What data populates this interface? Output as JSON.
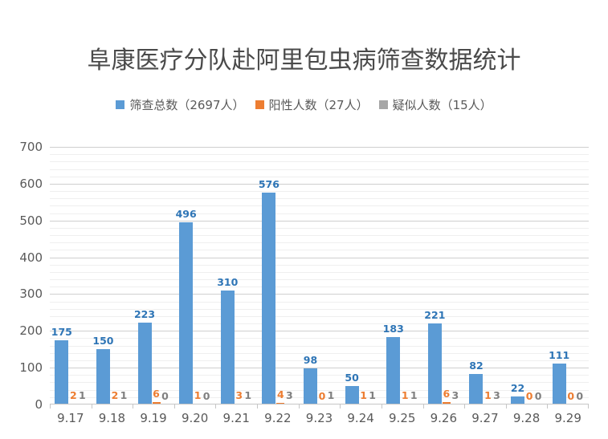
{
  "title": "阜康医疗分队赴阿里包虫病筛查数据统计",
  "legend": {
    "position": "top",
    "items": [
      {
        "label": "筛查总数（2697人）",
        "color": "#5B9BD5"
      },
      {
        "label": "阳性人数（27人）",
        "color": "#ED7D31"
      },
      {
        "label": "疑似人数（15人）",
        "color": "#A6A6A6"
      }
    ]
  },
  "chart_data": {
    "type": "bar",
    "title": "阜康医疗分队赴阿里包虫病筛查数据统计",
    "categories": [
      "9.17",
      "9.18",
      "9.19",
      "9.20",
      "9.21",
      "9.22",
      "9.23",
      "9.24",
      "9.25",
      "9.26",
      "9.27",
      "9.28",
      "9.29"
    ],
    "series": [
      {
        "name": "筛查总数（2697人）",
        "color": "#5B9BD5",
        "label_color": "#2E75B6",
        "values": [
          175,
          150,
          223,
          496,
          310,
          576,
          98,
          50,
          183,
          221,
          82,
          22,
          111
        ]
      },
      {
        "name": "阳性人数（27人）",
        "color": "#ED7D31",
        "label_color": "#ED7D31",
        "values": [
          2,
          2,
          6,
          1,
          3,
          4,
          0,
          1,
          1,
          6,
          1,
          0,
          0
        ]
      },
      {
        "name": "疑似人数（15人）",
        "color": "#A6A6A6",
        "label_color": "#808080",
        "values": [
          1,
          1,
          0,
          0,
          1,
          3,
          1,
          1,
          1,
          3,
          3,
          0,
          0
        ]
      }
    ],
    "xlabel": "",
    "ylabel": "",
    "ylim": [
      0,
      700
    ],
    "y_major_unit": 100,
    "y_minor_unit": 20,
    "y_tick_labels": [
      "700",
      "600",
      "500",
      "400",
      "300",
      "200",
      "100",
      "0"
    ],
    "grid": "horizontal major+minor",
    "data_labels": "shown above each bar",
    "legend_position": "top"
  }
}
